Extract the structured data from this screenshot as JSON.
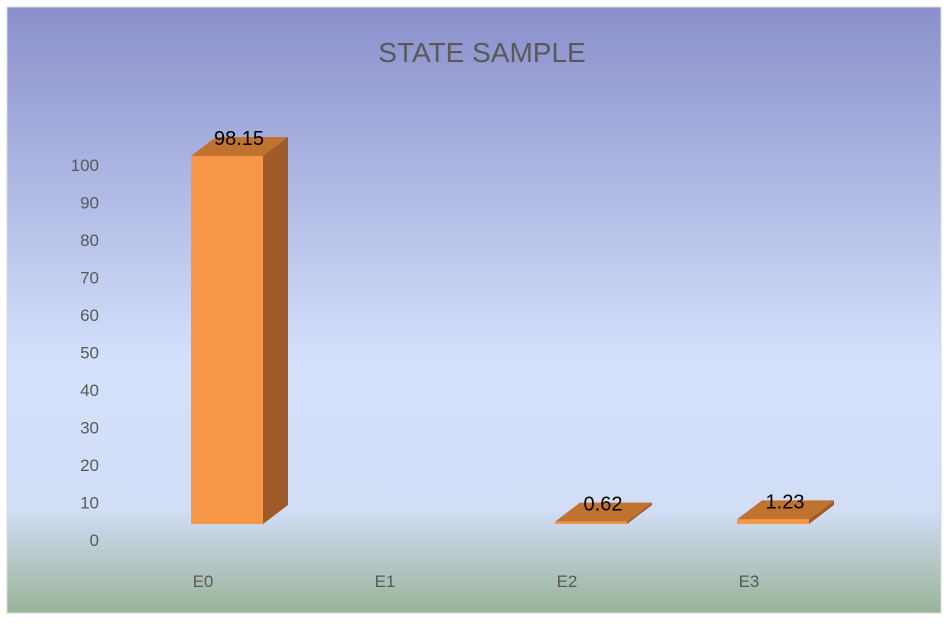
{
  "chart_data": {
    "type": "bar",
    "style": "3d-column",
    "title": "STATE SAMPLE",
    "xlabel": "",
    "ylabel": "",
    "categories": [
      "E0",
      "E1",
      "E2",
      "E3"
    ],
    "values": [
      98.15,
      null,
      0.62,
      1.23
    ],
    "data_labels": [
      "98.15",
      "",
      "0.62",
      "1.23"
    ],
    "y_ticks": [
      "0",
      "10",
      "20",
      "30",
      "40",
      "50",
      "60",
      "70",
      "80",
      "90",
      "100"
    ],
    "ylim": [
      0,
      100
    ],
    "grid": false,
    "legend": "none",
    "colors": {
      "bar_front": "#F79646",
      "bar_top": "#C0722F",
      "bar_side": "#9E5A27",
      "background_top": "#8A8FCB",
      "background_mid": "#D4E0FB",
      "background_bottom": "#98B398",
      "title": "#595959",
      "axis_text": "#595959",
      "data_label": "#000000",
      "border": "#D9D9D9"
    }
  }
}
